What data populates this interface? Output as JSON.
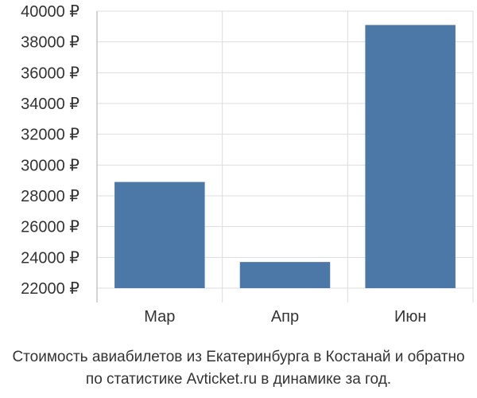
{
  "chart_data": {
    "type": "bar",
    "categories": [
      "Мар",
      "Апр",
      "Июн"
    ],
    "values": [
      28900,
      23700,
      39100
    ],
    "ylim": [
      22000,
      40000
    ],
    "yticks": [
      22000,
      24000,
      26000,
      28000,
      30000,
      32000,
      34000,
      36000,
      38000,
      40000
    ],
    "y_unit_suffix": " ₽",
    "grid": true,
    "legend": "none",
    "bar_color": "#4c78a8",
    "grid_color": "#dddddd",
    "axis_color": "#aaaaaa",
    "caption": [
      "Стоимость авиабилетов из Екатеринбурга в Костанай и обратно",
      "по статистике Avticket.ru в динамике за год."
    ]
  }
}
